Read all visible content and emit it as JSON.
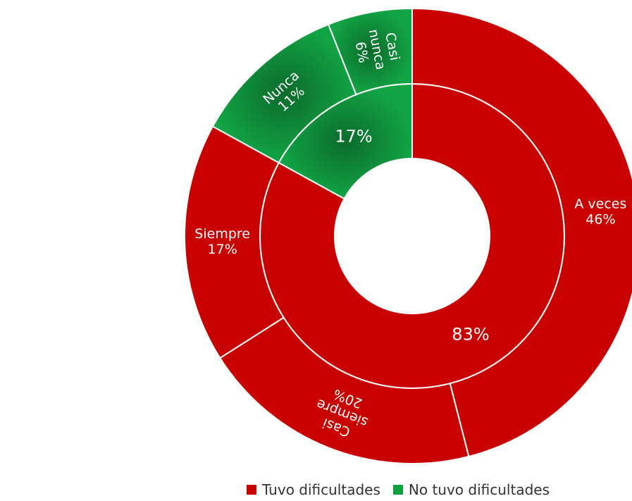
{
  "chart_data": {
    "type": "sunburst",
    "inner_ring": [
      {
        "name": "Tuvo dificultades",
        "label": "83%",
        "value": 83,
        "color": "#c80000"
      },
      {
        "name": "No tuvo dificultades",
        "label": "17%",
        "value": 17,
        "color": "#10a040"
      }
    ],
    "outer_ring": [
      {
        "label": "A veces",
        "pct": "46%",
        "value": 46,
        "group": "Tuvo dificultades",
        "color": "#c80000"
      },
      {
        "label": "Casi siempre",
        "pct": "20%",
        "value": 20,
        "group": "Tuvo dificultades",
        "color": "#c80000"
      },
      {
        "label": "Siempre",
        "pct": "17%",
        "value": 17,
        "group": "Tuvo dificultades",
        "color": "#c80000"
      },
      {
        "label": "Nunca",
        "pct": "11%",
        "value": 11,
        "group": "No tuvo dificultades",
        "color": "#10a040"
      },
      {
        "label": "Casi nunca",
        "pct": "6%",
        "value": 6,
        "group": "No tuvo dificultades",
        "color": "#10a040"
      }
    ],
    "legend": [
      {
        "label": "Tuvo dificultades",
        "color": "#c80000"
      },
      {
        "label": "No tuvo dificultades",
        "color": "#10a040"
      }
    ],
    "legend_position": "bottom"
  }
}
